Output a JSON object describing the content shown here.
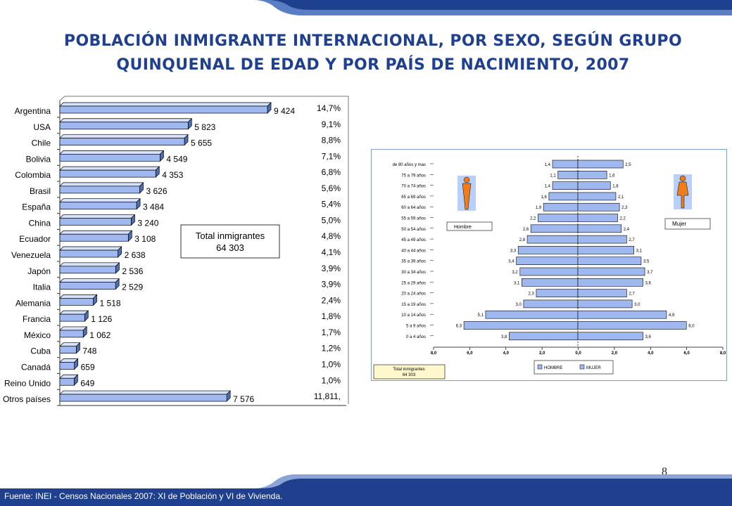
{
  "title": {
    "line1": "POBLACIÓN INMIGRANTE INTERNACIONAL, POR SEXO, SEGÚN GRUPO",
    "line2": "QUINQUENAL DE EDAD Y POR PAÍS DE NACIMIENTO,  2007"
  },
  "colors": {
    "band": "#1f3f8f",
    "band_light": "#5a7ec4",
    "bar": "#9fb8f0",
    "accent_orange": "#f07d1a",
    "title": "#1f3f8f"
  },
  "page_number": "8",
  "source": "Fuente: INEI - Censos Nacionales 2007: XI de Población y VI de Vivienda.",
  "chart_data": [
    {
      "type": "bar",
      "orientation": "horizontal",
      "categories": [
        "Argentina",
        "USA",
        "Chile",
        "Bolivia",
        "Colombia",
        "Brasil",
        "España",
        "China",
        "Ecuador",
        "Venezuela",
        "Japón",
        "Italia",
        "Alemania",
        "Francia",
        "México",
        "Cuba",
        "Canadá",
        "Reino Unido",
        "Otros países"
      ],
      "values": [
        9424,
        5823,
        5655,
        4549,
        4353,
        3626,
        3484,
        3240,
        3108,
        2638,
        2536,
        2529,
        1518,
        1126,
        1062,
        748,
        659,
        649,
        7576
      ],
      "value_labels": [
        "9 424",
        "5 823",
        "5 655",
        "4 549",
        "4 353",
        "3 626",
        "3 484",
        "3 240",
        "3 108",
        "2 638",
        "2 536",
        "2 529",
        "1 518",
        "1 126",
        "1 062",
        "748",
        "659",
        "649",
        "7 576"
      ],
      "percent_labels": [
        "14,7%",
        "9,1%",
        "8,8%",
        "7,1%",
        "6,8%",
        "5,6%",
        "5,4%",
        "5,0%",
        "4,8%",
        "4,1%",
        "3,9%",
        "3,9%",
        "2,4%",
        "1,8%",
        "1,7%",
        "1,2%",
        "1,0%",
        "1,0%",
        "11,811,"
      ],
      "annotation": {
        "line1": "Total inmigrantes",
        "line2": "64  303"
      },
      "xlim": [
        0,
        10000
      ]
    },
    {
      "type": "bar",
      "orientation": "horizontal",
      "subtype": "population-pyramid",
      "categories": [
        "de 80 años y mas",
        "75 a 79 años",
        "70 a 74 años",
        "65 a 69 años",
        "60 a 64 años",
        "55 a 59 años",
        "50 a 54 años",
        "45 a 49 años",
        "40 a 44 años",
        "35 a 39 años",
        "30 a 34 años",
        "25 a 29 años",
        "20 a 24 años",
        "15 a 19 años",
        "10 a 14 años",
        "5 a 9 años",
        "0 a 4 años"
      ],
      "series": [
        {
          "name": "HOMBRE",
          "values": [
            1.4,
            1.1,
            1.4,
            1.6,
            1.9,
            2.2,
            2.6,
            2.8,
            3.3,
            3.4,
            3.2,
            3.1,
            2.3,
            3.0,
            5.1,
            6.3,
            3.8
          ],
          "labels": [
            "1,4",
            "1,1",
            "1,4",
            "1,6",
            "1,9",
            "2,2",
            "2,6",
            "2,8",
            "3,3",
            "3,4",
            "3,2",
            "3,1",
            "2,3",
            "3,0",
            "5,1",
            "6,3",
            "3,8"
          ]
        },
        {
          "name": "MUJER",
          "values": [
            2.5,
            1.6,
            1.8,
            2.1,
            2.3,
            2.2,
            2.4,
            2.7,
            3.1,
            3.5,
            3.7,
            3.6,
            2.7,
            3.0,
            4.9,
            6.0,
            3.6
          ],
          "labels": [
            "2,5",
            "1,6",
            "1,8",
            "2,1",
            "2,3",
            "2,2",
            "2,4",
            "2,7",
            "3,1",
            "3,5",
            "3,7",
            "3,6",
            "2,7",
            "3,0",
            "4,9",
            "6,0",
            "3,6"
          ]
        }
      ],
      "xlim": [
        -8,
        8
      ],
      "x_ticks": [
        "8,0",
        "6,0",
        "4,0",
        "2,0",
        "0,0",
        "2,0",
        "4,0",
        "6,0",
        "8,0"
      ],
      "legend": [
        "HOMBRE",
        "MUJER"
      ],
      "legend_position": "bottom",
      "figure_labels": {
        "male": "Hombre",
        "female": "Mujer"
      },
      "annotation": {
        "line1": "Total inmigrantes",
        "line2": "64 303"
      }
    }
  ]
}
